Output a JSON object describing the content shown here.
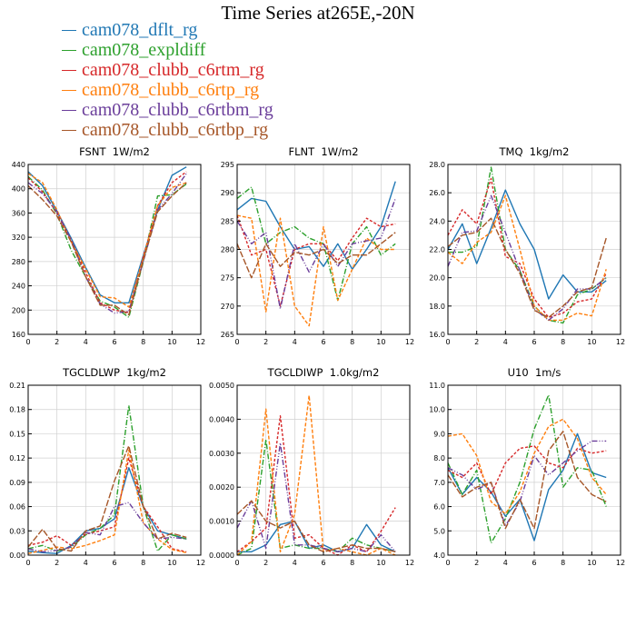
{
  "title": "Time Series at265E,-20N",
  "colors": {
    "cam078_dflt_rg": "#1f77b4",
    "cam078_expldiff": "#2ca02c",
    "cam078_clubb_c6rtm_rg": "#d62728",
    "cam078_clubb_c6rtp_rg": "#ff7f0e",
    "cam078_clubb_c6rtbm_rg": "#6a3d9a",
    "cam078_clubb_c6rtbp_rg": "#a65628"
  },
  "legend": [
    {
      "name": "cam078_dflt_rg",
      "color": "#1f77b4"
    },
    {
      "name": "cam078_expldiff",
      "color": "#2ca02c"
    },
    {
      "name": "cam078_clubb_c6rtm_rg",
      "color": "#d62728"
    },
    {
      "name": "cam078_clubb_c6rtp_rg",
      "color": "#ff7f0e"
    },
    {
      "name": "cam078_clubb_c6rtbm_rg",
      "color": "#6a3d9a"
    },
    {
      "name": "cam078_clubb_c6rtbp_rg",
      "color": "#a65628"
    }
  ],
  "chart_data": [
    {
      "type": "line",
      "title": "FSNT  1W/m2",
      "x": [
        0,
        1,
        2,
        3,
        4,
        5,
        6,
        7,
        8,
        9,
        10,
        11
      ],
      "xlim": [
        0,
        12
      ],
      "xticks": [
        "0",
        "2",
        "4",
        "6",
        "8",
        "10",
        "12"
      ],
      "ylim": [
        160,
        440
      ],
      "yticks": [
        "160",
        "200",
        "240",
        "280",
        "320",
        "360",
        "400",
        "440"
      ],
      "series": [
        {
          "name": "cam078_dflt_rg",
          "values": [
            428,
            405,
            363,
            318,
            270,
            225,
            212,
            212,
            290,
            365,
            422,
            436
          ]
        },
        {
          "name": "cam078_expldiff",
          "values": [
            420,
            398,
            358,
            298,
            255,
            215,
            205,
            188,
            280,
            388,
            390,
            408
          ]
        },
        {
          "name": "cam078_clubb_c6rtm_rg",
          "values": [
            418,
            395,
            360,
            315,
            262,
            212,
            200,
            196,
            288,
            372,
            410,
            428
          ]
        },
        {
          "name": "cam078_clubb_c6rtp_rg",
          "values": [
            425,
            410,
            365,
            312,
            268,
            222,
            220,
            205,
            285,
            372,
            402,
            410
          ]
        },
        {
          "name": "cam078_clubb_c6rtbm_rg",
          "values": [
            410,
            392,
            362,
            315,
            255,
            210,
            195,
            198,
            280,
            365,
            392,
            425
          ]
        },
        {
          "name": "cam078_clubb_c6rtbp_rg",
          "values": [
            405,
            382,
            355,
            312,
            255,
            208,
            208,
            192,
            282,
            362,
            388,
            410
          ]
        }
      ]
    },
    {
      "type": "line",
      "title": "FLNT  1W/m2",
      "x": [
        0,
        1,
        2,
        3,
        4,
        5,
        6,
        7,
        8,
        9,
        10,
        11
      ],
      "xlim": [
        0,
        12
      ],
      "xticks": [
        "0",
        "2",
        "4",
        "6",
        "8",
        "10",
        "12"
      ],
      "ylim": [
        265,
        295
      ],
      "yticks": [
        "265",
        "270",
        "275",
        "280",
        "285",
        "290",
        "295"
      ],
      "series": [
        {
          "name": "cam078_dflt_rg",
          "values": [
            287,
            289,
            288.5,
            284,
            280,
            280.5,
            277,
            281,
            276.5,
            280,
            284,
            292
          ]
        },
        {
          "name": "cam078_expldiff",
          "values": [
            289,
            291,
            281,
            283,
            284,
            282,
            281,
            271,
            281,
            284,
            279,
            281
          ]
        },
        {
          "name": "cam078_clubb_c6rtm_rg",
          "values": [
            286,
            279,
            280,
            270,
            280,
            281,
            281,
            278,
            282,
            285.5,
            284,
            284.5
          ]
        },
        {
          "name": "cam078_clubb_c6rtp_rg",
          "values": [
            286,
            285.5,
            269,
            285.5,
            270,
            266.5,
            284,
            271,
            276.5,
            282,
            280,
            280
          ]
        },
        {
          "name": "cam078_clubb_c6rtbm_rg",
          "values": [
            285,
            281,
            283,
            269.5,
            281,
            276,
            281,
            277,
            281,
            281.5,
            282,
            289
          ]
        },
        {
          "name": "cam078_clubb_c6rtbp_rg",
          "values": [
            281,
            275,
            281,
            277,
            279.5,
            279,
            280,
            277.5,
            279,
            279,
            281,
            283
          ]
        }
      ]
    },
    {
      "type": "line",
      "title": "TMQ  1kg/m2",
      "x": [
        0,
        1,
        2,
        3,
        4,
        5,
        6,
        7,
        8,
        9,
        10,
        11
      ],
      "xlim": [
        0,
        12
      ],
      "xticks": [
        "0",
        "2",
        "4",
        "6",
        "8",
        "10",
        "12"
      ],
      "ylim": [
        16,
        28
      ],
      "yticks": [
        "16.0",
        "18.0",
        "20.0",
        "22.0",
        "24.0",
        "26.0",
        "28.0"
      ],
      "series": [
        {
          "name": "cam078_dflt_rg",
          "values": [
            22,
            23.8,
            21,
            23.5,
            26.2,
            23.8,
            22,
            18.5,
            20.2,
            19,
            19,
            19.8
          ]
        },
        {
          "name": "cam078_expldiff",
          "values": [
            21.8,
            21.8,
            22.2,
            27.8,
            22,
            20.5,
            18,
            17,
            16.8,
            18.8,
            19.2,
            20
          ]
        },
        {
          "name": "cam078_clubb_c6rtm_rg",
          "values": [
            23,
            24.8,
            23.8,
            27,
            21.5,
            21,
            18.5,
            17.2,
            17.5,
            18.3,
            18.5,
            20.3
          ]
        },
        {
          "name": "cam078_clubb_c6rtp_rg",
          "values": [
            21.8,
            21,
            22.5,
            23.2,
            25.8,
            22,
            18,
            17,
            17,
            17.5,
            17.3,
            20.6
          ]
        },
        {
          "name": "cam078_clubb_c6rtbm_rg",
          "values": [
            20.8,
            23.2,
            23.3,
            25.8,
            23.2,
            20.5,
            17.8,
            17,
            17.8,
            19.2,
            19.2,
            20
          ]
        },
        {
          "name": "cam078_clubb_c6rtbp_rg",
          "values": [
            22.2,
            23,
            23.2,
            24.2,
            22,
            20.3,
            17.7,
            17.2,
            18,
            19,
            19.3,
            22.8
          ]
        }
      ]
    },
    {
      "type": "line",
      "title": "TGCLDLWP  1kg/m2",
      "x": [
        0,
        1,
        2,
        3,
        4,
        5,
        6,
        7,
        8,
        9,
        10,
        11
      ],
      "xlim": [
        0,
        12
      ],
      "xticks": [
        "0",
        "2",
        "4",
        "6",
        "8",
        "10",
        "12"
      ],
      "ylim": [
        0,
        0.21
      ],
      "yticks": [
        "0.00",
        "0.03",
        "0.06",
        "0.09",
        "0.12",
        "0.15",
        "0.18",
        "0.21"
      ],
      "series": [
        {
          "name": "cam078_dflt_rg",
          "values": [
            0.005,
            0.003,
            0.002,
            0.012,
            0.03,
            0.033,
            0.045,
            0.108,
            0.06,
            0.03,
            0.025,
            0.02
          ]
        },
        {
          "name": "cam078_expldiff",
          "values": [
            0.008,
            0.012,
            0.005,
            0.01,
            0.025,
            0.033,
            0.05,
            0.185,
            0.06,
            0.005,
            0.025,
            0.02
          ]
        },
        {
          "name": "cam078_clubb_c6rtm_rg",
          "values": [
            0.012,
            0.016,
            0.024,
            0.012,
            0.026,
            0.03,
            0.035,
            0.12,
            0.06,
            0.035,
            0.008,
            0.004
          ]
        },
        {
          "name": "cam078_clubb_c6rtp_rg",
          "values": [
            0.002,
            0.006,
            0.01,
            0.008,
            0.012,
            0.018,
            0.025,
            0.13,
            0.04,
            0.02,
            0.007,
            0.003
          ]
        },
        {
          "name": "cam078_clubb_c6rtbm_rg",
          "values": [
            0.008,
            0.004,
            0.006,
            0.01,
            0.028,
            0.025,
            0.06,
            0.065,
            0.04,
            0.02,
            0.022,
            0.02
          ]
        },
        {
          "name": "cam078_clubb_c6rtbp_rg",
          "values": [
            0.01,
            0.032,
            0.008,
            0.005,
            0.03,
            0.036,
            0.092,
            0.135,
            0.06,
            0.02,
            0.027,
            0.022
          ]
        }
      ]
    },
    {
      "type": "line",
      "title": "TGCLDIWP  1.0kg/m2",
      "x": [
        0,
        1,
        2,
        3,
        4,
        5,
        6,
        7,
        8,
        9,
        10,
        11
      ],
      "xlim": [
        0,
        12
      ],
      "xticks": [
        "0",
        "2",
        "4",
        "6",
        "8",
        "10",
        "12"
      ],
      "ylim": [
        0,
        0.005
      ],
      "yticks": [
        "0.0000",
        "0.0010",
        "0.0020",
        "0.0030",
        "0.0040",
        "0.0050"
      ],
      "series": [
        {
          "name": "cam078_dflt_rg",
          "values": [
            0.0001,
            0.0001,
            0.0003,
            0.0009,
            0.001,
            0.0002,
            0.0003,
            0.0001,
            0.0002,
            0.0009,
            0.0003,
            0.0001
          ]
        },
        {
          "name": "cam078_expldiff",
          "values": [
            0.0,
            0.0002,
            0.0034,
            0.0002,
            0.0003,
            0.0002,
            0.0002,
            0.0001,
            0.0005,
            0.0003,
            0.0002,
            0.0001
          ]
        },
        {
          "name": "cam078_clubb_c6rtm_rg",
          "values": [
            0.0001,
            0.0004,
            0.0008,
            0.0041,
            0.0005,
            0.0006,
            0.0002,
            0.0,
            0.0003,
            0.0001,
            0.0007,
            0.0014
          ]
        },
        {
          "name": "cam078_clubb_c6rtp_rg",
          "values": [
            0.0,
            0.0004,
            0.0043,
            0.0001,
            0.0012,
            0.0047,
            0.0001,
            0.0002,
            0.0001,
            0.0,
            0.0002,
            0.0
          ]
        },
        {
          "name": "cam078_clubb_c6rtbm_rg",
          "values": [
            0.0008,
            0.0016,
            0.0002,
            0.0033,
            0.0003,
            0.0003,
            0.0002,
            0.0001,
            0.0002,
            0.0001,
            0.0006,
            0.0001
          ]
        },
        {
          "name": "cam078_clubb_c6rtbp_rg",
          "values": [
            0.0012,
            0.0016,
            0.001,
            0.0008,
            0.001,
            0.0003,
            0.0001,
            0.0002,
            0.0003,
            0.0002,
            0.0002,
            0.0001
          ]
        }
      ]
    },
    {
      "type": "line",
      "title": "U10  1m/s",
      "x": [
        0,
        1,
        2,
        3,
        4,
        5,
        6,
        7,
        8,
        9,
        10,
        11
      ],
      "xlim": [
        0,
        12
      ],
      "xticks": [
        "0",
        "2",
        "4",
        "6",
        "8",
        "10",
        "12"
      ],
      "ylim": [
        4,
        11
      ],
      "yticks": [
        "4.0",
        "5.0",
        "6.0",
        "7.0",
        "8.0",
        "9.0",
        "10.0",
        "11.0"
      ],
      "series": [
        {
          "name": "cam078_dflt_rg",
          "values": [
            7.6,
            6.5,
            7.2,
            6.6,
            5.6,
            6.3,
            4.6,
            6.7,
            7.5,
            9,
            7.4,
            7.2
          ]
        },
        {
          "name": "cam078_expldiff",
          "values": [
            7.8,
            6.5,
            7.5,
            4.5,
            5.5,
            7,
            9.2,
            10.6,
            6.8,
            7.6,
            7.5,
            6
          ]
        },
        {
          "name": "cam078_clubb_c6rtm_rg",
          "values": [
            7.5,
            7.2,
            7.8,
            6.5,
            7.8,
            8.4,
            8.5,
            7.8,
            7.6,
            8.4,
            8.2,
            8.3
          ]
        },
        {
          "name": "cam078_clubb_c6rtp_rg",
          "values": [
            8.9,
            9,
            8.1,
            6.2,
            5.7,
            6.6,
            8.2,
            9.3,
            9.6,
            8.8,
            7.2,
            6.5
          ]
        },
        {
          "name": "cam078_clubb_c6rtbm_rg",
          "values": [
            7.6,
            7.3,
            6.7,
            7,
            5.2,
            6.2,
            8.1,
            7.3,
            7.8,
            8.3,
            8.7,
            8.7
          ]
        },
        {
          "name": "cam078_clubb_c6rtbp_rg",
          "values": [
            7.3,
            6.4,
            6.8,
            7,
            5.1,
            6.3,
            5.1,
            8.3,
            9.1,
            7.2,
            6.5,
            6.2
          ]
        }
      ]
    }
  ]
}
